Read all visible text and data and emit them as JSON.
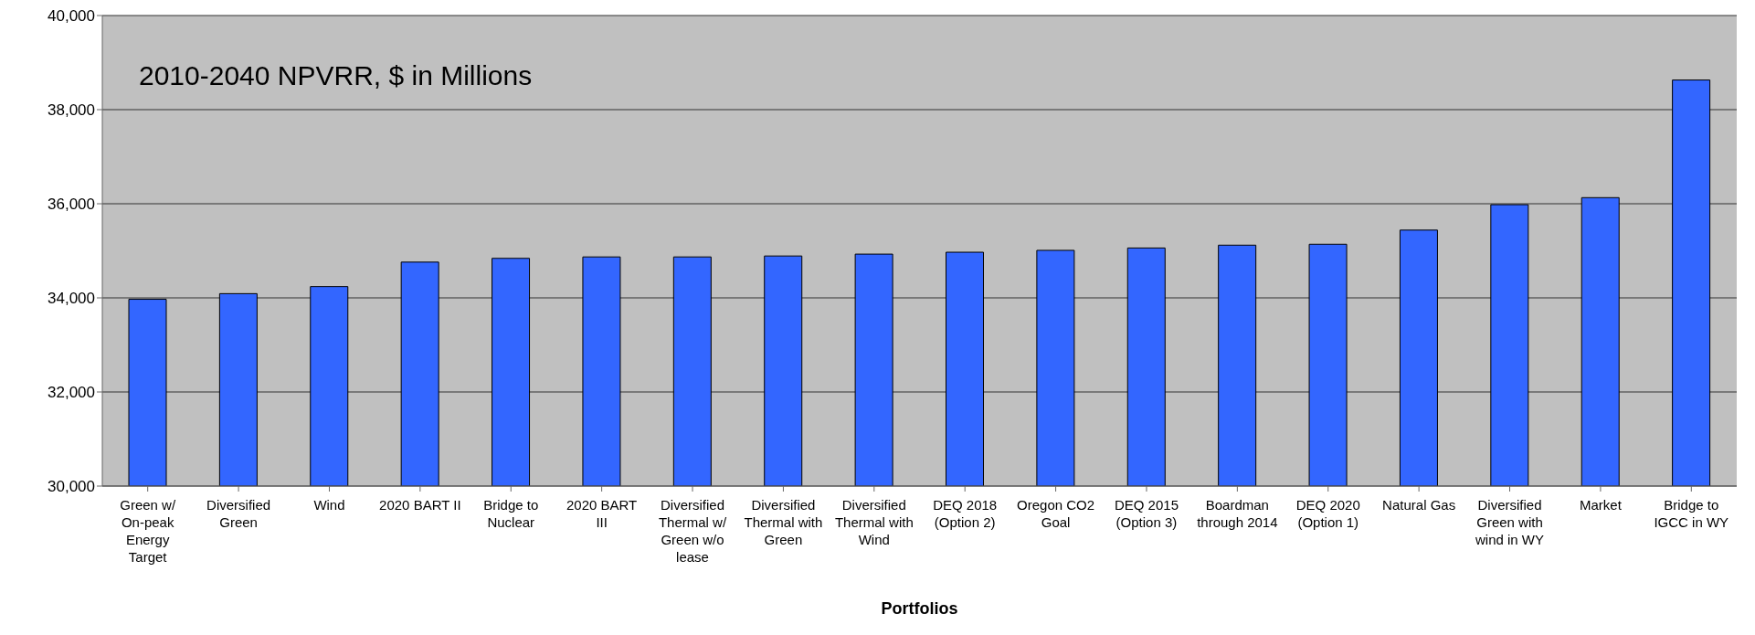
{
  "chart_data": {
    "type": "bar",
    "title": "2010-2040 NPVRR, $ in Millions",
    "xlabel": "Portfolios",
    "categories": [
      "Green w/ On-peak Energy Target",
      "Diversified Green",
      "Wind",
      "2020 BART II",
      "Bridge to Nuclear",
      "2020 BART III",
      "Diversified Thermal w/ Green w/o lease",
      "Diversified Thermal with Green",
      "Diversified Thermal with Wind",
      "DEQ 2018 (Option 2)",
      "Oregon CO2 Goal",
      "DEQ 2015 (Option 3)",
      "Boardman through 2014",
      "DEQ 2020 (Option 1)",
      "Natural Gas",
      "Diversified Green with wind in WY",
      "Market",
      "Bridge to IGCC in WY"
    ],
    "values": [
      33970,
      34090,
      34240,
      34760,
      34840,
      34870,
      34870,
      34890,
      34930,
      34970,
      35010,
      35060,
      35120,
      35140,
      35440,
      35980,
      36130,
      38630
    ],
    "color": "#3366ff",
    "ylim": [
      30000,
      40000
    ],
    "yticks": [
      {
        "value": 30000,
        "label": "30,000"
      },
      {
        "value": 32000,
        "label": "32,000"
      },
      {
        "value": 34000,
        "label": "34,000"
      },
      {
        "value": 36000,
        "label": "36,000"
      },
      {
        "value": 38000,
        "label": "38,000"
      },
      {
        "value": 40000,
        "label": "40,000"
      }
    ],
    "grid": "y"
  }
}
